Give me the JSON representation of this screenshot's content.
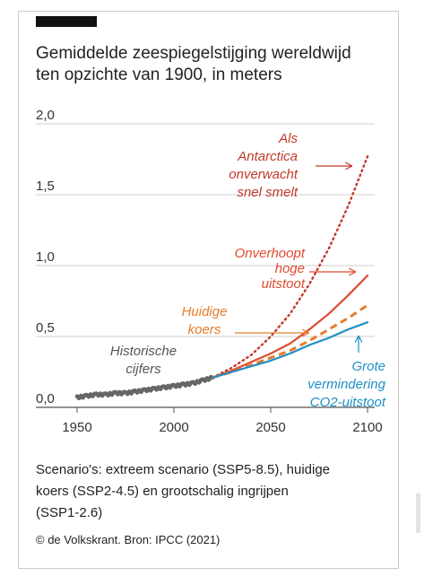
{
  "header": {
    "title_line1": "Gemiddelde zeespiegelstijging wereldwijd",
    "title_line2": "ten opzichte van 1900, in meters"
  },
  "chart_data": {
    "type": "line",
    "title": "Gemiddelde zeespiegelstijging wereldwijd ten opzichte van 1900, in meters",
    "xlim": [
      1950,
      2100
    ],
    "ylim": [
      0,
      2.0
    ],
    "x_ticks": [
      "1950",
      "2000",
      "2050",
      "2100"
    ],
    "y_ticks": [
      "0,0",
      "0,5",
      "1,0",
      "1,5",
      "2,0"
    ],
    "x_tick_values": [
      1950,
      2000,
      2050,
      2100
    ],
    "y_tick_values": [
      0,
      0.5,
      1.0,
      1.5,
      2.0
    ],
    "grid": "horizontal",
    "series": [
      {
        "key": "historical",
        "annotation": [
          "Historische",
          "cijfers"
        ],
        "color": "#666666",
        "style": "solid-thick",
        "x": [
          1950,
          1955,
          1960,
          1965,
          1970,
          1975,
          1980,
          1985,
          1990,
          1995,
          2000,
          2005,
          2010,
          2015,
          2020
        ],
        "y": [
          0.07,
          0.08,
          0.09,
          0.09,
          0.1,
          0.1,
          0.11,
          0.12,
          0.13,
          0.14,
          0.15,
          0.16,
          0.17,
          0.19,
          0.21
        ]
      },
      {
        "key": "antarctica",
        "annotation": [
          "Als",
          "Antarctica",
          "onverwacht",
          "snel smelt"
        ],
        "color": "#c0392b",
        "style": "dotted",
        "x": [
          2020,
          2030,
          2040,
          2050,
          2060,
          2070,
          2080,
          2090,
          2100
        ],
        "y": [
          0.21,
          0.28,
          0.37,
          0.5,
          0.66,
          0.87,
          1.12,
          1.42,
          1.77
        ]
      },
      {
        "key": "ssp585",
        "annotation": [
          "Onverhoopt",
          "hoge",
          "uitstoot"
        ],
        "color": "#e04a2f",
        "style": "solid",
        "x": [
          2020,
          2030,
          2040,
          2050,
          2060,
          2070,
          2080,
          2090,
          2100
        ],
        "y": [
          0.21,
          0.26,
          0.32,
          0.38,
          0.45,
          0.55,
          0.66,
          0.79,
          0.93
        ]
      },
      {
        "key": "ssp245",
        "annotation": [
          "Huidige",
          "koers"
        ],
        "color": "#e57d2b",
        "style": "dashed",
        "x": [
          2020,
          2030,
          2040,
          2050,
          2060,
          2070,
          2080,
          2090,
          2100
        ],
        "y": [
          0.21,
          0.25,
          0.3,
          0.35,
          0.4,
          0.47,
          0.55,
          0.63,
          0.72
        ]
      },
      {
        "key": "ssp126",
        "annotation": [
          "Grote",
          "vermindering",
          "CO2-uitstoot"
        ],
        "color": "#1f8fc7",
        "style": "solid",
        "x": [
          2020,
          2030,
          2040,
          2050,
          2060,
          2070,
          2080,
          2090,
          2100
        ],
        "y": [
          0.21,
          0.25,
          0.29,
          0.33,
          0.38,
          0.44,
          0.49,
          0.55,
          0.6
        ]
      }
    ]
  },
  "footer": {
    "note_line1": "Scenario's: extreem scenario (SSP5-8.5), huidige",
    "note_line2": "koers (SSP2-4.5) en grootschalig ingrijpen",
    "note_line3": "(SSP1-2.6)",
    "source": "© de Volkskrant. Bron: IPCC (2021)"
  }
}
